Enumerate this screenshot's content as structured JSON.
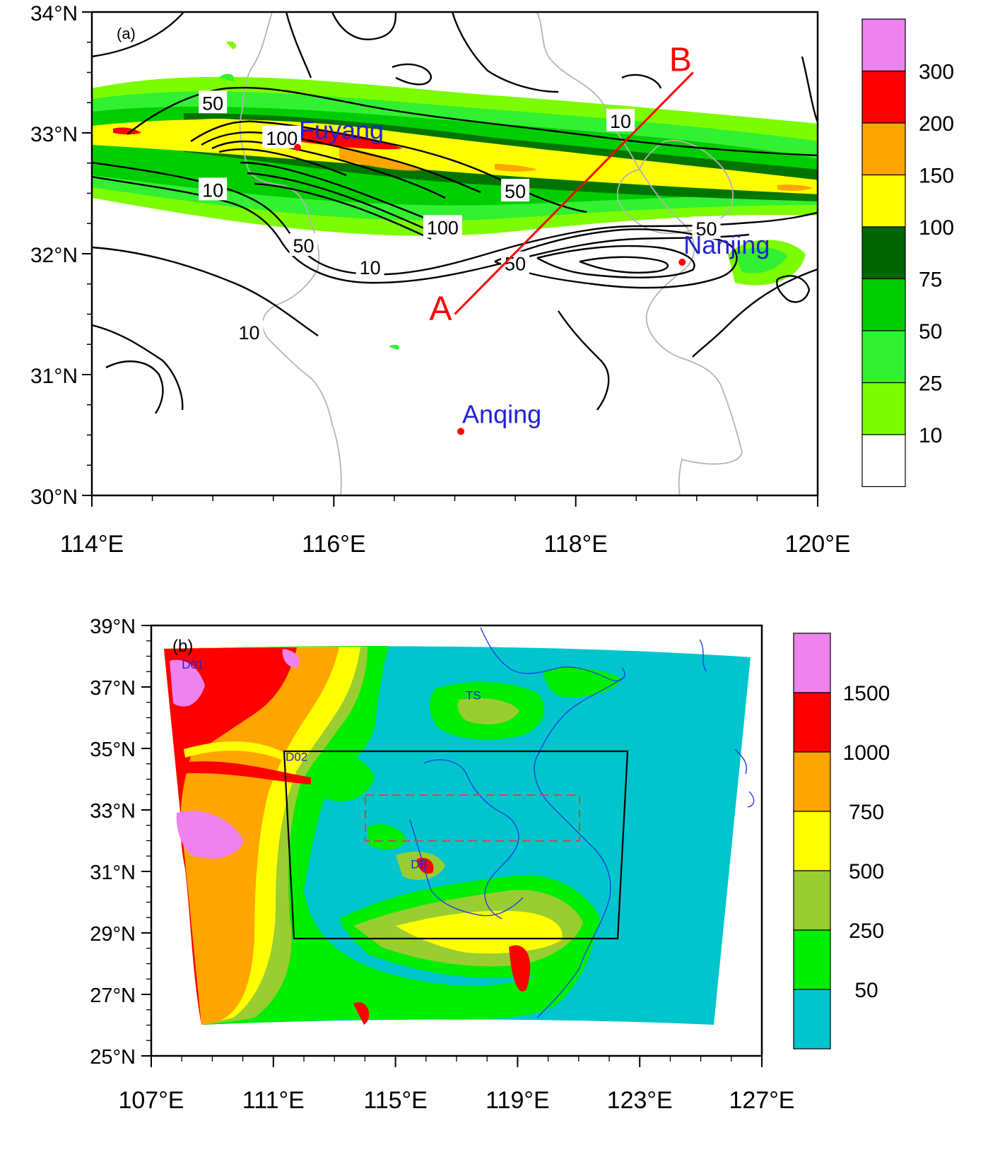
{
  "panel_a": {
    "label": "(a)",
    "lat_labels": [
      {
        "text": "34°N",
        "value": 34
      },
      {
        "text": "33°N",
        "value": 33
      },
      {
        "text": "32°N",
        "value": 32
      },
      {
        "text": "31°N",
        "value": 31
      },
      {
        "text": "30°N",
        "value": 30
      }
    ],
    "lon_labels": [
      {
        "text": "114°E",
        "value": 114
      },
      {
        "text": "116°E",
        "value": 116
      },
      {
        "text": "118°E",
        "value": 118
      },
      {
        "text": "120°E",
        "value": 120
      }
    ],
    "lon_range": [
      114,
      120
    ],
    "lat_range": [
      30,
      34
    ],
    "cities": [
      {
        "name": "Fuyang",
        "lon": 115.7,
        "lat": 32.88
      },
      {
        "name": "Nanjing",
        "lon": 118.88,
        "lat": 31.93
      },
      {
        "name": "Anqing",
        "lon": 117.05,
        "lat": 30.53
      }
    ],
    "cross_section": {
      "start_label": "A",
      "end_label": "B",
      "start": [
        117.0,
        31.5
      ],
      "end": [
        118.97,
        33.5
      ]
    },
    "contour_labels": [
      {
        "text": "50",
        "lon": 115.0,
        "lat": 33.25
      },
      {
        "text": "100",
        "lon": 115.57,
        "lat": 32.96
      },
      {
        "text": "10",
        "lon": 115.0,
        "lat": 32.53
      },
      {
        "text": "10",
        "lon": 118.37,
        "lat": 33.1
      },
      {
        "text": "50",
        "lon": 117.5,
        "lat": 32.52
      },
      {
        "text": "100",
        "lon": 116.9,
        "lat": 32.22
      },
      {
        "text": "50",
        "lon": 115.75,
        "lat": 32.07
      },
      {
        "text": "10",
        "lon": 116.3,
        "lat": 31.89
      },
      {
        "text": "50",
        "lon": 117.5,
        "lat": 31.92
      },
      {
        "text": "50",
        "lon": 119.08,
        "lat": 32.21
      },
      {
        "text": "10",
        "lon": 115.3,
        "lat": 31.35
      }
    ],
    "legend": {
      "labels": [
        "300",
        "200",
        "150",
        "100",
        "75",
        "50",
        "25",
        "10"
      ],
      "colors": [
        "#ffffff",
        "#7cfc00",
        "#32f032",
        "#00cd00",
        "#006400",
        "#ffff00",
        "#ffa500",
        "#ff0000",
        "#ee82ee"
      ]
    }
  },
  "panel_b": {
    "label": "(b)",
    "lat_labels": [
      {
        "text": "39°N",
        "value": 39
      },
      {
        "text": "37°N",
        "value": 37
      },
      {
        "text": "35°N",
        "value": 35
      },
      {
        "text": "33°N",
        "value": 33
      },
      {
        "text": "31°N",
        "value": 31
      },
      {
        "text": "29°N",
        "value": 29
      },
      {
        "text": "27°N",
        "value": 27
      },
      {
        "text": "25°N",
        "value": 25
      }
    ],
    "lon_labels": [
      {
        "text": "107°E",
        "value": 107
      },
      {
        "text": "111°E",
        "value": 111
      },
      {
        "text": "115°E",
        "value": 115
      },
      {
        "text": "119°E",
        "value": 119
      },
      {
        "text": "123°E",
        "value": 123
      },
      {
        "text": "127°E",
        "value": 127
      }
    ],
    "lon_range": [
      107,
      127
    ],
    "lat_range": [
      25,
      39
    ],
    "domain_labels": [
      {
        "text": "D01",
        "lon": 108.0,
        "lat": 37.6
      },
      {
        "text": "D02",
        "lon": 111.4,
        "lat": 34.6
      },
      {
        "text": "TS",
        "lon": 117.3,
        "lat": 36.6
      },
      {
        "text": "DB",
        "lon": 115.5,
        "lat": 31.1
      }
    ],
    "legend": {
      "labels": [
        "1500",
        "1000",
        "750",
        "500",
        "250",
        "50"
      ],
      "colors": [
        "#00c5cd",
        "#00ee00",
        "#9acd32",
        "#ffff00",
        "#ffa500",
        "#ff0000",
        "#ee82ee"
      ]
    }
  }
}
